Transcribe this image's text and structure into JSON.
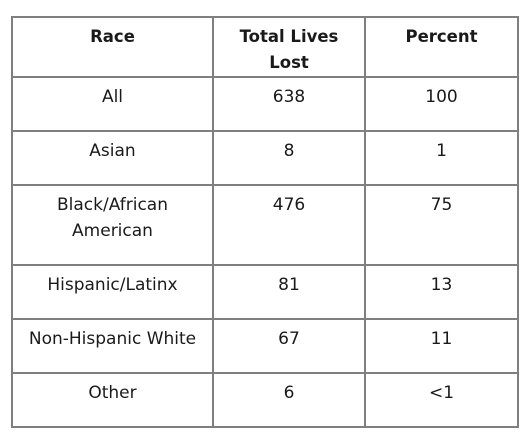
{
  "table": {
    "headers": [
      "Race",
      "Total Lives Lost",
      "Percent"
    ],
    "rows": [
      {
        "race": "All",
        "total": "638",
        "percent": "100"
      },
      {
        "race": "Asian",
        "total": "8",
        "percent": "1"
      },
      {
        "race": "Black/African American",
        "total": "476",
        "percent": "75"
      },
      {
        "race": "Hispanic/Latinx",
        "total": "81",
        "percent": "13"
      },
      {
        "race": "Non-Hispanic White",
        "total": "67",
        "percent": "11"
      },
      {
        "race": "Other",
        "total": "6",
        "percent": "<1"
      }
    ]
  }
}
